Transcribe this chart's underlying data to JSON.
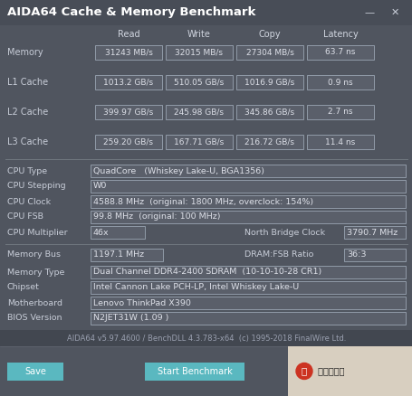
{
  "title": "AIDA64 Cache & Memory Benchmark",
  "bg_color": "#50555f",
  "title_bg": "#484d57",
  "box_bg": "#5a5f6a",
  "box_border": "#909aa8",
  "text_color": "#dde0e8",
  "label_color": "#c8cdd8",
  "header_color": "#d0d5e0",
  "footer_text": "AIDA64 v5.97.4600 / BenchDLL 4.3.783-x64  (c) 1995-2018 FinalWire Ltd.",
  "button_color": "#5ab8c0",
  "button_text_color": "#ffffff",
  "col_headers": [
    "Read",
    "Write",
    "Copy",
    "Latency"
  ],
  "rows": [
    {
      "label": "Memory",
      "read": "31243 MB/s",
      "write": "32015 MB/s",
      "copy": "27304 MB/s",
      "latency": "63.7 ns"
    },
    {
      "label": "L1 Cache",
      "read": "1013.2 GB/s",
      "write": "510.05 GB/s",
      "copy": "1016.9 GB/s",
      "latency": "0.9 ns"
    },
    {
      "label": "L2 Cache",
      "read": "399.97 GB/s",
      "write": "245.98 GB/s",
      "copy": "345.86 GB/s",
      "latency": "2.7 ns"
    },
    {
      "label": "L3 Cache",
      "read": "259.20 GB/s",
      "write": "167.71 GB/s",
      "copy": "216.72 GB/s",
      "latency": "11.4 ns"
    }
  ],
  "cpu_info": [
    {
      "label": "CPU Type",
      "value": "QuadCore   (Whiskey Lake-U, BGA1356)"
    },
    {
      "label": "CPU Stepping",
      "value": "W0"
    },
    {
      "label": "CPU Clock",
      "value": "4588.8 MHz  (original: 1800 MHz, overclock: 154%)"
    },
    {
      "label": "CPU FSB",
      "value": "99.8 MHz  (original: 100 MHz)"
    }
  ],
  "cpu_mult_label": "CPU Multiplier",
  "cpu_mult_value": "46x",
  "nb_label": "North Bridge Clock",
  "nb_value": "3790.7 MHz",
  "mem_bus_label": "Memory Bus",
  "mem_bus_value": "1197.1 MHz",
  "dram_label": "DRAM:FSB Ratio",
  "dram_value": "36:3",
  "sys_info": [
    {
      "label": "Memory Type",
      "value": "Dual Channel DDR4-2400 SDRAM  (10-10-10-28 CR1)"
    },
    {
      "label": "Chipset",
      "value": "Intel Cannon Lake PCH-LP, Intel Whiskey Lake-U"
    },
    {
      "label": "Motherboard",
      "value": "Lenovo ThinkPad X390"
    },
    {
      "label": "BIOS Version",
      "value": "N2JET31W (1.09 )"
    }
  ],
  "button1": "Save",
  "button2": "Start Benchmark",
  "wm_text1": "值",
  "wm_text2": " 什么值得买"
}
